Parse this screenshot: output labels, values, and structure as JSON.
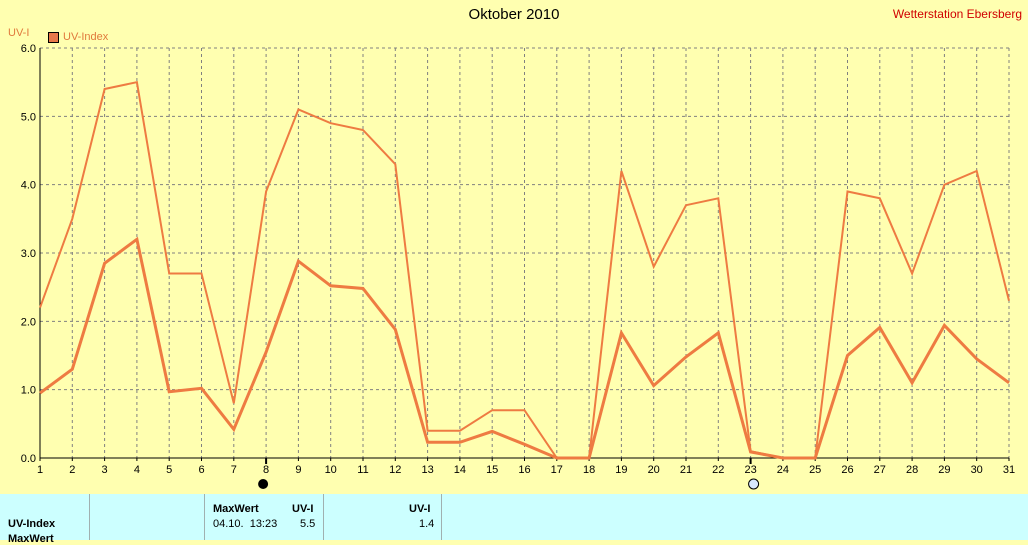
{
  "header": {
    "title": "Oktober 2010",
    "station": "Wetterstation Ebersberg",
    "y_unit": "UV-I",
    "legend_label": "UV-Index"
  },
  "chart_data": {
    "type": "line",
    "title": "Oktober 2010",
    "ylabel": "UV-I",
    "xlabel": "",
    "ylim": [
      0,
      6
    ],
    "xlim": [
      1,
      31
    ],
    "y_ticks": [
      "0.0",
      "1.0",
      "2.0",
      "3.0",
      "4.0",
      "5.0",
      "6.0"
    ],
    "x_ticks": [
      "1",
      "2",
      "3",
      "4",
      "5",
      "6",
      "7",
      "8",
      "9",
      "10",
      "11",
      "12",
      "13",
      "14",
      "15",
      "16",
      "17",
      "18",
      "19",
      "20",
      "21",
      "22",
      "23",
      "24",
      "25",
      "26",
      "27",
      "28",
      "29",
      "30",
      "31"
    ],
    "grid": true,
    "legend_position": "top-left",
    "colors": {
      "line": "#ee7b42",
      "grid": "#808080",
      "background": "#ffffb0"
    },
    "series": [
      {
        "name": "UV-Index",
        "role": "max",
        "x": [
          1,
          2,
          3,
          4,
          5,
          6,
          7,
          8,
          9,
          10,
          11,
          12,
          13,
          14,
          15,
          16,
          17,
          18,
          19,
          20,
          21,
          22,
          23,
          24,
          25,
          26,
          27,
          28,
          29,
          30,
          31
        ],
        "values": [
          2.2,
          3.5,
          5.4,
          5.5,
          2.7,
          2.7,
          0.8,
          3.9,
          5.1,
          4.9,
          4.8,
          4.3,
          0.4,
          0.4,
          0.7,
          0.7,
          0.0,
          0.0,
          4.2,
          2.8,
          3.7,
          3.8,
          0.1,
          0.0,
          0.0,
          3.9,
          3.8,
          2.7,
          4.0,
          4.2,
          2.3
        ]
      },
      {
        "name": "",
        "role": "mean",
        "x": [
          1,
          2,
          3,
          4,
          5,
          6,
          7,
          8,
          9,
          10,
          11,
          12,
          13,
          14,
          15,
          16,
          17,
          18,
          19,
          20,
          21,
          22,
          23,
          24,
          25,
          26,
          27,
          28,
          29,
          30,
          31
        ],
        "values": [
          0.95,
          1.3,
          2.85,
          3.2,
          0.97,
          1.02,
          0.42,
          1.55,
          2.88,
          2.52,
          2.48,
          1.88,
          0.23,
          0.23,
          0.39,
          0.2,
          0.0,
          0.0,
          1.83,
          1.06,
          1.48,
          1.83,
          0.09,
          0.0,
          0.0,
          1.5,
          1.91,
          1.1,
          1.94,
          1.45,
          1.1
        ]
      }
    ],
    "moon_phases": [
      {
        "day": 8,
        "phase": "new-moon"
      },
      {
        "day": 23,
        "phase": "full-moon"
      }
    ]
  },
  "table": {
    "row_label": "UV-Index",
    "row2_label": "MaxWert",
    "col_maxwert": "MaxWert",
    "col_uvi": "UV-I",
    "col_uvi2": "UV-I",
    "max_datetime": "04.10.  13:23",
    "max_value": "5.5",
    "mean_value": "1.4"
  }
}
